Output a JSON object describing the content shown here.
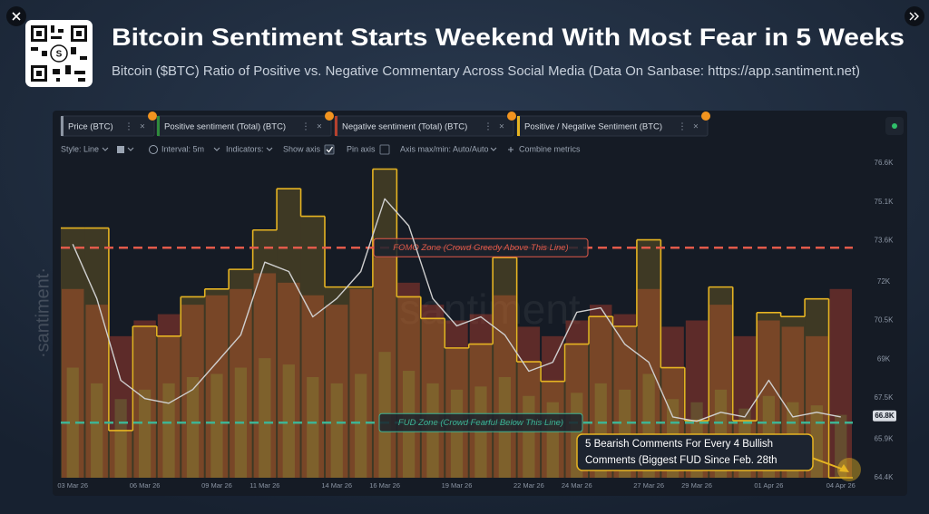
{
  "header": {
    "title": "Bitcoin Sentiment Starts Weekend With Most Fear in 5 Weeks",
    "subtitle": "Bitcoin ($BTC) Ratio of Positive vs. Negative Commentary Across Social Media (Data On Sanbase: https://app.santiment.net)"
  },
  "toolbar": {
    "style": "Style: Line",
    "interval": "Interval: 5m",
    "indicators": "Indicators:",
    "show_axis": "Show axis",
    "pin_axis": "Pin axis",
    "axis_range": "Axis max/min: Auto/Auto",
    "combine": "Combine metrics"
  },
  "chart_data": {
    "type": "line",
    "categories": [
      "03 Mar 26",
      null,
      null,
      "06 Mar 26",
      null,
      null,
      "09 Mar 26",
      null,
      "11 Mar 26",
      null,
      null,
      "14 Mar 26",
      null,
      "16 Mar 26",
      null,
      null,
      "19 Mar 26",
      null,
      null,
      "22 Mar 26",
      null,
      "24 Mar 26",
      null,
      null,
      "27 Mar 26",
      null,
      "29 Mar 26",
      null,
      null,
      "01 Apr 26",
      null,
      null,
      "04 Apr 26"
    ],
    "series": [
      {
        "name": "Price (BTC)",
        "type": "line",
        "axis": "y",
        "color": "#cfcfcf",
        "values": [
          73460,
          71350,
          68180,
          67470,
          67290,
          67820,
          68880,
          69940,
          72760,
          72400,
          70640,
          71350,
          72400,
          75220,
          74170,
          71350,
          70290,
          70640,
          69940,
          68530,
          68880,
          70820,
          70990,
          69580,
          68880,
          66760,
          66590,
          66940,
          66760,
          68180,
          66760,
          66940,
          66760
        ]
      },
      {
        "name": "Positive sentiment (Total) (BTC)",
        "type": "bar",
        "axis": "y3",
        "color": "#2f8a3c",
        "values": [
          35,
          30,
          25,
          28,
          30,
          32,
          33,
          35,
          38,
          36,
          32,
          30,
          33,
          40,
          34,
          30,
          28,
          29,
          32,
          26,
          24,
          27,
          30,
          28,
          33,
          25,
          24,
          28,
          22,
          26,
          24,
          23,
          20
        ]
      },
      {
        "name": "Negative sentiment (Total) (BTC)",
        "type": "bar",
        "axis": "y3",
        "color": "#b5412e",
        "values": [
          60,
          55,
          45,
          50,
          52,
          55,
          58,
          60,
          65,
          62,
          58,
          55,
          60,
          70,
          62,
          55,
          50,
          52,
          58,
          48,
          45,
          50,
          55,
          52,
          60,
          48,
          50,
          55,
          45,
          50,
          48,
          45,
          60
        ]
      },
      {
        "name": "Positive / Negative Sentiment (BTC)",
        "type": "step",
        "axis": "y2",
        "color": "#e6b422",
        "values": [
          2.07,
          2.07,
          1.04,
          1.57,
          1.52,
          1.72,
          1.76,
          1.86,
          2.06,
          2.27,
          2.13,
          1.77,
          1.77,
          2.37,
          1.72,
          1.61,
          1.46,
          1.48,
          1.92,
          1.39,
          1.29,
          1.48,
          1.62,
          1.57,
          2.01,
          1.36,
          1.09,
          1.77,
          1.09,
          1.64,
          1.62,
          1.71,
          0.8
        ]
      }
    ],
    "ylim": [
      64400,
      76600
    ],
    "yticks": [
      {
        "value": 76600,
        "label": "76.6K"
      },
      {
        "value": 75100,
        "label": "75.1K"
      },
      {
        "value": 73600,
        "label": "73.6K"
      },
      {
        "value": 72000,
        "label": "72K"
      },
      {
        "value": 70500,
        "label": "70.5K"
      },
      {
        "value": 69000,
        "label": "69K"
      },
      {
        "value": 67500,
        "label": "67.5K"
      },
      {
        "value": 65900,
        "label": "65.9K"
      },
      {
        "value": 64400,
        "label": "64.4K"
      }
    ],
    "y2lim": [
      0.8,
      2.4
    ],
    "y3lim": [
      0,
      100
    ],
    "grid": false,
    "price_marker": {
      "value": 66800,
      "label": "66.8K"
    },
    "fomo_level": 1.97,
    "fud_level": 1.08,
    "annotations": {
      "fomo": "FOMO Zone (Crowd Greedy Above This Line)",
      "fud": "FUD Zone (Crowd Fearful Below This Line)",
      "callout": [
        "5 Bearish Comments For Every 4 Bullish",
        "Comments (Biggest FUD Since Feb. 28th"
      ]
    },
    "watermark": "·santiment·",
    "center_watermark": "santiment"
  }
}
